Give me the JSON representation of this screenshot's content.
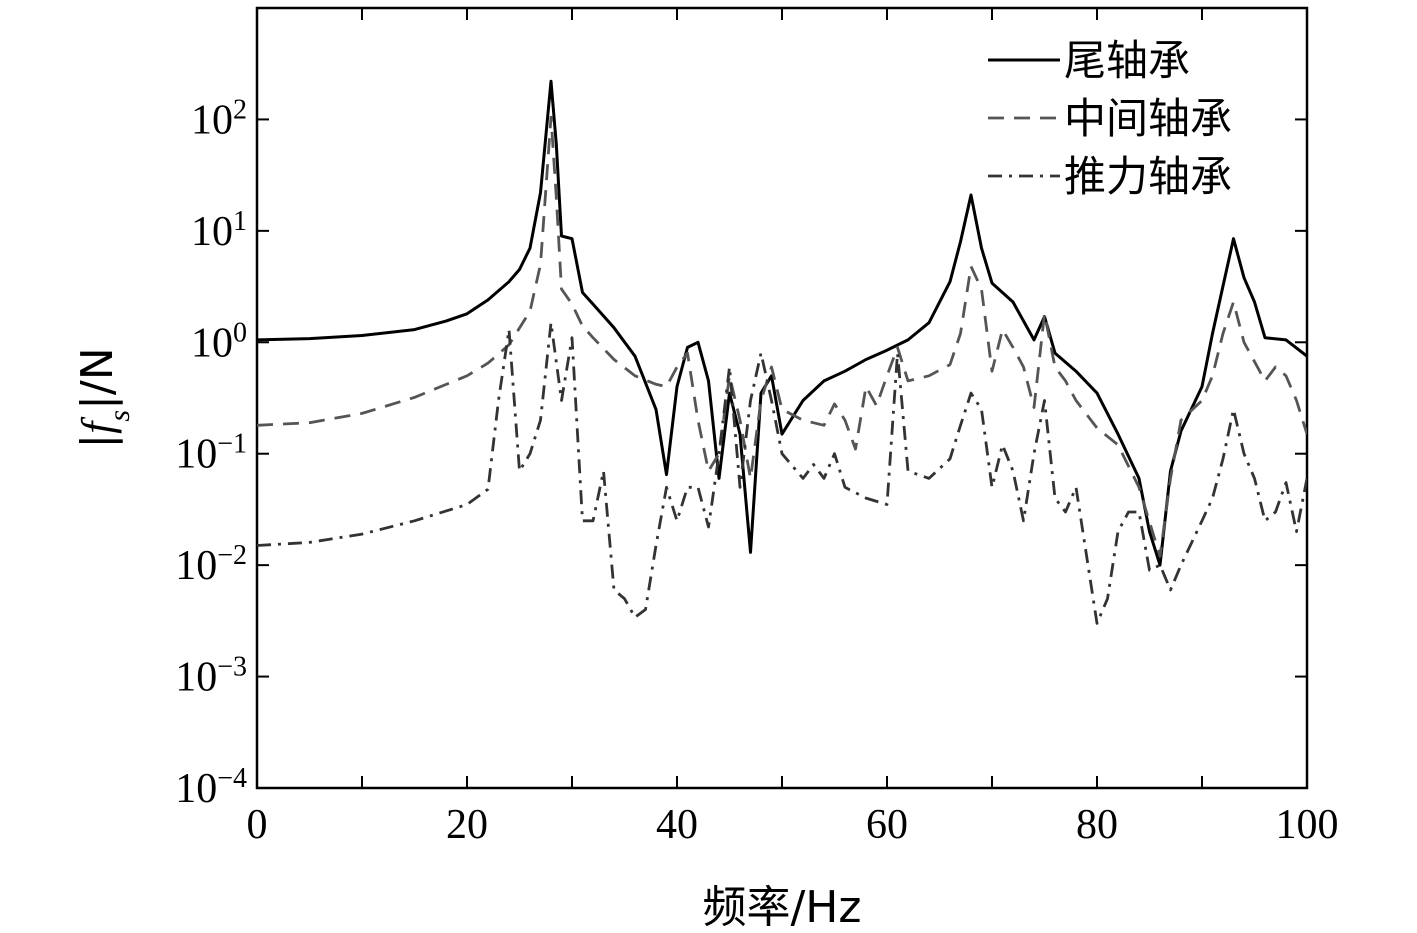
{
  "chart_data": {
    "type": "line",
    "xlabel": "频率/Hz",
    "ylabel_parts": {
      "pre": "|",
      "f": "f",
      "sub": "s",
      "post": "|/N"
    },
    "xlim": [
      0,
      100
    ],
    "ylim": [
      0.0001,
      1000
    ],
    "yscale": "log",
    "grid": false,
    "legend_position": "top-right",
    "x_ticks": [
      "0",
      "20",
      "40",
      "60",
      "80",
      "100"
    ],
    "y_ticks": [
      {
        "base": "10",
        "exp": "2",
        "value": 100
      },
      {
        "base": "10",
        "exp": "1",
        "value": 10
      },
      {
        "base": "10",
        "exp": "0",
        "value": 1
      },
      {
        "base": "10",
        "exp": "−1",
        "value": 0.1
      },
      {
        "base": "10",
        "exp": "−2",
        "value": 0.01
      },
      {
        "base": "10",
        "exp": "−3",
        "value": 0.001
      },
      {
        "base": "10",
        "exp": "−4",
        "value": 0.0001
      }
    ],
    "series": [
      {
        "name": "尾轴承",
        "style": "solid",
        "color": "#000000",
        "points": [
          [
            0,
            1.05
          ],
          [
            5,
            1.08
          ],
          [
            10,
            1.15
          ],
          [
            15,
            1.3
          ],
          [
            18,
            1.55
          ],
          [
            20,
            1.8
          ],
          [
            22,
            2.4
          ],
          [
            24,
            3.5
          ],
          [
            25,
            4.5
          ],
          [
            26,
            7
          ],
          [
            27,
            22
          ],
          [
            28,
            220
          ],
          [
            28.5,
            60
          ],
          [
            29,
            9
          ],
          [
            30,
            8.5
          ],
          [
            31,
            2.8
          ],
          [
            32,
            2.2
          ],
          [
            34,
            1.35
          ],
          [
            36,
            0.75
          ],
          [
            38,
            0.25
          ],
          [
            39,
            0.065
          ],
          [
            40,
            0.4
          ],
          [
            41,
            0.9
          ],
          [
            42,
            1.0
          ],
          [
            43,
            0.45
          ],
          [
            44,
            0.06
          ],
          [
            45,
            0.35
          ],
          [
            46,
            0.15
          ],
          [
            47,
            0.013
          ],
          [
            48,
            0.35
          ],
          [
            49,
            0.5
          ],
          [
            50,
            0.15
          ],
          [
            52,
            0.3
          ],
          [
            54,
            0.45
          ],
          [
            56,
            0.55
          ],
          [
            58,
            0.7
          ],
          [
            60,
            0.85
          ],
          [
            62,
            1.05
          ],
          [
            64,
            1.5
          ],
          [
            66,
            3.5
          ],
          [
            67,
            8
          ],
          [
            68,
            21
          ],
          [
            69,
            7
          ],
          [
            70,
            3.4
          ],
          [
            72,
            2.3
          ],
          [
            74,
            1.05
          ],
          [
            75,
            1.7
          ],
          [
            76,
            0.8
          ],
          [
            78,
            0.55
          ],
          [
            80,
            0.35
          ],
          [
            82,
            0.15
          ],
          [
            84,
            0.06
          ],
          [
            85,
            0.02
          ],
          [
            86,
            0.01
          ],
          [
            87,
            0.07
          ],
          [
            88,
            0.16
          ],
          [
            90,
            0.4
          ],
          [
            91,
            1.2
          ],
          [
            92,
            3.2
          ],
          [
            93,
            8.5
          ],
          [
            94,
            3.8
          ],
          [
            95,
            2.3
          ],
          [
            96,
            1.1
          ],
          [
            98,
            1.05
          ],
          [
            100,
            0.75
          ]
        ]
      },
      {
        "name": "中间轴承",
        "style": "dashed",
        "color": "#555555",
        "points": [
          [
            0,
            0.18
          ],
          [
            5,
            0.19
          ],
          [
            10,
            0.23
          ],
          [
            15,
            0.32
          ],
          [
            20,
            0.5
          ],
          [
            22,
            0.65
          ],
          [
            24,
            0.95
          ],
          [
            26,
            1.9
          ],
          [
            27,
            5
          ],
          [
            28,
            105
          ],
          [
            28.5,
            20
          ],
          [
            29,
            3
          ],
          [
            30,
            2.2
          ],
          [
            31,
            1.4
          ],
          [
            32,
            1.1
          ],
          [
            34,
            0.7
          ],
          [
            36,
            0.5
          ],
          [
            38,
            0.42
          ],
          [
            39,
            0.4
          ],
          [
            40,
            0.6
          ],
          [
            41,
            0.8
          ],
          [
            42,
            0.2
          ],
          [
            43,
            0.07
          ],
          [
            44,
            0.1
          ],
          [
            45,
            0.5
          ],
          [
            46,
            0.2
          ],
          [
            47,
            0.06
          ],
          [
            48,
            0.3
          ],
          [
            49,
            0.6
          ],
          [
            50,
            0.25
          ],
          [
            52,
            0.2
          ],
          [
            54,
            0.18
          ],
          [
            55,
            0.28
          ],
          [
            56,
            0.2
          ],
          [
            57,
            0.11
          ],
          [
            58,
            0.4
          ],
          [
            59,
            0.27
          ],
          [
            60,
            0.5
          ],
          [
            61,
            0.9
          ],
          [
            62,
            0.45
          ],
          [
            64,
            0.5
          ],
          [
            66,
            0.63
          ],
          [
            67,
            1.2
          ],
          [
            68,
            4.8
          ],
          [
            69,
            3
          ],
          [
            70,
            0.55
          ],
          [
            71,
            1.3
          ],
          [
            72,
            0.9
          ],
          [
            73,
            0.6
          ],
          [
            74,
            0.26
          ],
          [
            75,
            1.8
          ],
          [
            76,
            0.6
          ],
          [
            77,
            0.45
          ],
          [
            78,
            0.3
          ],
          [
            80,
            0.17
          ],
          [
            82,
            0.12
          ],
          [
            84,
            0.05
          ],
          [
            86,
            0.012
          ],
          [
            87,
            0.06
          ],
          [
            88,
            0.2
          ],
          [
            90,
            0.3
          ],
          [
            91,
            0.5
          ],
          [
            92,
            1.2
          ],
          [
            93,
            2.3
          ],
          [
            94,
            1.0
          ],
          [
            96,
            0.45
          ],
          [
            97,
            0.6
          ],
          [
            98,
            0.5
          ],
          [
            99,
            0.3
          ],
          [
            100,
            0.15
          ]
        ]
      },
      {
        "name": "推力轴承",
        "style": "dashdot",
        "color": "#333333",
        "points": [
          [
            0,
            0.015
          ],
          [
            5,
            0.016
          ],
          [
            10,
            0.019
          ],
          [
            15,
            0.025
          ],
          [
            20,
            0.035
          ],
          [
            22,
            0.048
          ],
          [
            23,
            0.3
          ],
          [
            24,
            1.3
          ],
          [
            25,
            0.07
          ],
          [
            26,
            0.1
          ],
          [
            27,
            0.2
          ],
          [
            28,
            1.5
          ],
          [
            29,
            0.3
          ],
          [
            30,
            1.1
          ],
          [
            31,
            0.025
          ],
          [
            32,
            0.025
          ],
          [
            33,
            0.07
          ],
          [
            34,
            0.006
          ],
          [
            35,
            0.005
          ],
          [
            36,
            0.0034
          ],
          [
            37,
            0.004
          ],
          [
            38,
            0.015
          ],
          [
            39,
            0.05
          ],
          [
            40,
            0.025
          ],
          [
            41,
            0.05
          ],
          [
            42,
            0.05
          ],
          [
            43,
            0.022
          ],
          [
            44,
            0.1
          ],
          [
            45,
            0.6
          ],
          [
            46,
            0.05
          ],
          [
            47,
            0.3
          ],
          [
            48,
            0.8
          ],
          [
            49,
            0.3
          ],
          [
            50,
            0.1
          ],
          [
            52,
            0.06
          ],
          [
            53,
            0.08
          ],
          [
            54,
            0.06
          ],
          [
            55,
            0.1
          ],
          [
            56,
            0.05
          ],
          [
            58,
            0.04
          ],
          [
            60,
            0.035
          ],
          [
            61,
            0.8
          ],
          [
            62,
            0.07
          ],
          [
            64,
            0.06
          ],
          [
            66,
            0.09
          ],
          [
            67,
            0.18
          ],
          [
            68,
            0.35
          ],
          [
            69,
            0.25
          ],
          [
            70,
            0.05
          ],
          [
            71,
            0.12
          ],
          [
            72,
            0.07
          ],
          [
            73,
            0.025
          ],
          [
            74,
            0.1
          ],
          [
            75,
            0.3
          ],
          [
            76,
            0.04
          ],
          [
            77,
            0.03
          ],
          [
            78,
            0.05
          ],
          [
            80,
            0.003
          ],
          [
            81,
            0.005
          ],
          [
            82,
            0.02
          ],
          [
            83,
            0.03
          ],
          [
            84,
            0.03
          ],
          [
            85,
            0.009
          ],
          [
            86,
            0.01
          ],
          [
            87,
            0.006
          ],
          [
            88,
            0.01
          ],
          [
            90,
            0.025
          ],
          [
            91,
            0.04
          ],
          [
            92,
            0.09
          ],
          [
            93,
            0.25
          ],
          [
            94,
            0.1
          ],
          [
            95,
            0.06
          ],
          [
            96,
            0.025
          ],
          [
            97,
            0.03
          ],
          [
            98,
            0.055
          ],
          [
            99,
            0.02
          ],
          [
            100,
            0.06
          ]
        ]
      }
    ]
  }
}
